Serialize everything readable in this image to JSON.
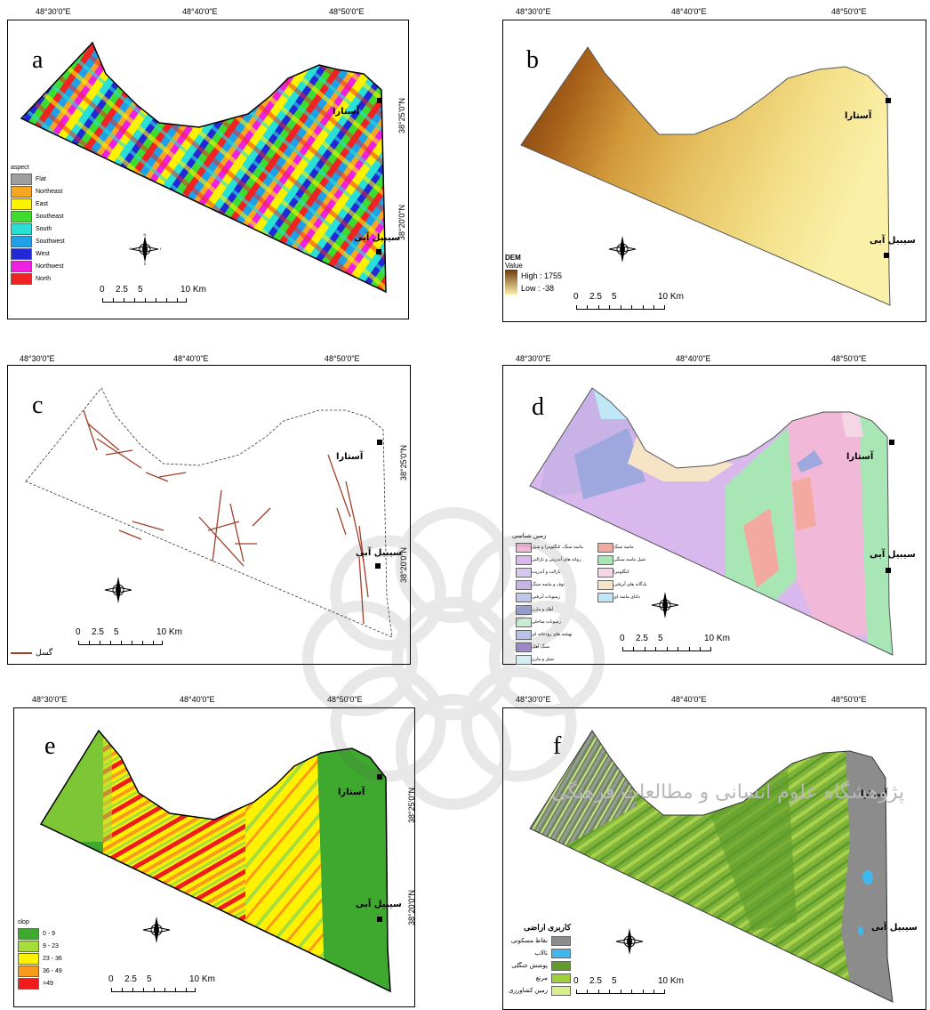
{
  "panels": {
    "a": {
      "letter": "a",
      "coords_top": [
        "48°30'0\"E",
        "48°40'0\"E",
        "48°50'0\"E"
      ],
      "coords_right": [
        "38°25'0\"N",
        "38°20'0\"N"
      ],
      "legend_title": "aspect",
      "legend": [
        {
          "label": "Flat",
          "color": "#9e9e9e"
        },
        {
          "label": "Northeast",
          "color": "#f5a623"
        },
        {
          "label": "East",
          "color": "#fff200"
        },
        {
          "label": "Southeast",
          "color": "#3ddc2f"
        },
        {
          "label": "South",
          "color": "#28e0d6"
        },
        {
          "label": "Southwest",
          "color": "#1ea1e6"
        },
        {
          "label": "West",
          "color": "#2328d6"
        },
        {
          "label": "Northwest",
          "color": "#f020e0"
        },
        {
          "label": "North",
          "color": "#f02323"
        }
      ]
    },
    "b": {
      "letter": "b",
      "coords_top": [
        "48°30'0\"E",
        "48°40'0\"E",
        "48°50'0\"E"
      ],
      "legend_title": "DEM",
      "legend_sub": "Value",
      "high": "High : 1755",
      "low": "Low : -38"
    },
    "c": {
      "letter": "c",
      "coords_top": [
        "48°30'0\"E",
        "48°40'0\"E",
        "48°50'0\"E"
      ],
      "coords_right": [
        "38°25'0\"N",
        "38°20'0\"N"
      ],
      "legend_label": "گسل"
    },
    "d": {
      "letter": "d",
      "coords_top": [
        "48°30'0\"E",
        "48°40'0\"E",
        "48°50'0\"E"
      ],
      "legend_title": "زمین شناسی",
      "legend_left": [
        {
          "label": "ماسه سنگ، کنگلومرا و شیل",
          "color": "#f2b8d8"
        },
        {
          "label": "روانه های آندزیتی و بازالتی",
          "color": "#d9b8ee"
        },
        {
          "label": "بازالت و آندزیت",
          "color": "#d8c7ef"
        },
        {
          "label": "توف و ماسه سنگ",
          "color": "#c9b2e6"
        },
        {
          "label": "رسوبات آبرفتی",
          "color": "#bfc6ea"
        },
        {
          "label": "آهک و مارن",
          "color": "#9fa8de"
        },
        {
          "label": "رسوبات ساحلی",
          "color": "#c8ecd2"
        },
        {
          "label": "نهشته های رودخانه ای",
          "color": "#b8c2e8"
        },
        {
          "label": "سنگ آهک",
          "color": "#a98fd6"
        },
        {
          "label": "شیل و مارن",
          "color": "#d5eef4"
        }
      ],
      "legend_right": [
        {
          "label": "ماسه سنگ",
          "color": "#f4a9a0"
        },
        {
          "label": "شیل ماسه سنگی",
          "color": "#a9e6b6"
        },
        {
          "label": "کنگلومرا",
          "color": "#f4d6e4"
        },
        {
          "label": "پادگانه های آبرفتی",
          "color": "#f7e3c6"
        },
        {
          "label": "دلتای ماسه ای",
          "color": "#bfe7f5"
        }
      ]
    },
    "e": {
      "letter": "e",
      "coords_top": [
        "48°30'0\"E",
        "48°40'0\"E",
        "48°50'0\"E"
      ],
      "coords_right": [
        "38°25'0\"N",
        "38°20'0\"N"
      ],
      "legend_title": "slop",
      "legend": [
        {
          "label": "0 - 9",
          "color": "#3fa82e"
        },
        {
          "label": "9 - 23",
          "color": "#a6dc3c"
        },
        {
          "label": "23 - 36",
          "color": "#fff200"
        },
        {
          "label": "36 - 49",
          "color": "#f89a1c"
        },
        {
          "label": ">49",
          "color": "#ee1c1c"
        }
      ]
    },
    "f": {
      "letter": "f",
      "coords_top": [
        "48°30'0\"E",
        "48°40'0\"E",
        "48°50'0\"E"
      ],
      "legend_title": "کاربری اراضی",
      "legend": [
        {
          "label": "نقاط مسکونی",
          "color": "#8c8c8c"
        },
        {
          "label": "تالاب",
          "color": "#3fb8ef"
        },
        {
          "label": "پوشش جنگلی",
          "color": "#5f9c2c"
        },
        {
          "label": "مرتع",
          "color": "#9fcf3c"
        },
        {
          "label": "زمین کشاورزی",
          "color": "#d8ef8c"
        }
      ]
    }
  },
  "cities": {
    "astara": "آستارا",
    "sibil": "سیبیل آبی"
  },
  "scale": {
    "ticks": [
      "0",
      "2.5",
      "5",
      "10 Km"
    ]
  },
  "north_letters": {
    "n": "N",
    "s": "S",
    "e": "E",
    "w": "W"
  },
  "watermark_text": "پژوهشگاه علوم انسانی و مطالعات فرهنگی"
}
